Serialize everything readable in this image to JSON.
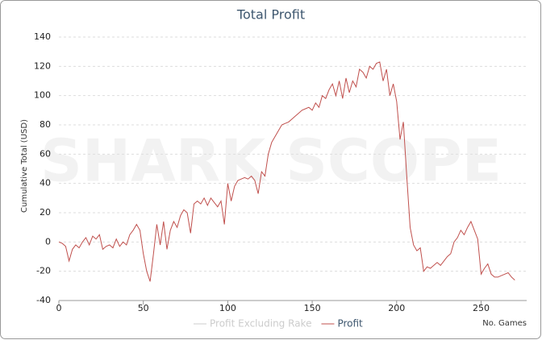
{
  "chart_data": {
    "type": "line",
    "title": "Total Profit",
    "watermark": "SHARK SCOPE",
    "x_label": "No. Games",
    "y_label": "Cumulative Total (USD)",
    "x": [
      0,
      2,
      4,
      6,
      8,
      10,
      12,
      14,
      16,
      18,
      20,
      22,
      24,
      26,
      28,
      30,
      32,
      34,
      36,
      38,
      40,
      42,
      44,
      46,
      48,
      50,
      52,
      54,
      56,
      58,
      60,
      62,
      64,
      66,
      68,
      70,
      72,
      74,
      76,
      78,
      80,
      82,
      84,
      86,
      88,
      90,
      92,
      94,
      96,
      98,
      100,
      102,
      104,
      106,
      108,
      110,
      112,
      114,
      116,
      118,
      120,
      122,
      124,
      126,
      128,
      130,
      132,
      134,
      136,
      138,
      140,
      142,
      144,
      146,
      148,
      150,
      152,
      154,
      156,
      158,
      160,
      162,
      164,
      166,
      168,
      170,
      172,
      174,
      176,
      178,
      180,
      182,
      184,
      186,
      188,
      190,
      192,
      194,
      196,
      198,
      200,
      202,
      204,
      206,
      208,
      210,
      212,
      214,
      216,
      218,
      220,
      222,
      224,
      226,
      228,
      230,
      232,
      234,
      236,
      238,
      240,
      242,
      244,
      246,
      248,
      250,
      252,
      254,
      256,
      258,
      260,
      262,
      264,
      266,
      268,
      270
    ],
    "series": [
      {
        "name": "Profit Excluding Rake",
        "color": "#cccccc",
        "visible": false
      },
      {
        "name": "Profit",
        "color": "#c0504d",
        "visible": true,
        "values": [
          0,
          -1,
          -3,
          -13,
          -5,
          -2,
          -4,
          0,
          3,
          -2,
          4,
          2,
          5,
          -5,
          -3,
          -2,
          -4,
          2,
          -3,
          0,
          -2,
          5,
          8,
          12,
          8,
          -8,
          -20,
          -27,
          -8,
          12,
          -2,
          14,
          -5,
          8,
          14,
          10,
          18,
          22,
          20,
          6,
          26,
          28,
          26,
          30,
          25,
          30,
          27,
          24,
          28,
          12,
          40,
          28,
          38,
          42,
          43,
          44,
          43,
          45,
          42,
          33,
          48,
          45,
          60,
          68,
          72,
          76,
          80,
          81,
          82,
          84,
          86,
          88,
          90,
          91,
          92,
          90,
          95,
          92,
          100,
          98,
          104,
          108,
          100,
          110,
          98,
          112,
          102,
          110,
          106,
          118,
          116,
          112,
          120,
          118,
          122,
          123,
          110,
          118,
          100,
          108,
          96,
          70,
          82,
          45,
          10,
          -2,
          -6,
          -4,
          -20,
          -17,
          -18,
          -16,
          -14,
          -16,
          -13,
          -10,
          -8,
          0,
          3,
          8,
          5,
          10,
          14,
          8,
          2,
          -22,
          -18,
          -15,
          -22,
          -24,
          -24,
          -23,
          -22,
          -21,
          -24,
          -26
        ]
      }
    ],
    "xlim": [
      0,
      277
    ],
    "xticks": [
      0,
      50,
      100,
      150,
      200,
      250
    ],
    "ylim": [
      -40,
      140
    ],
    "yticks": [
      -40,
      -20,
      0,
      20,
      40,
      60,
      80,
      100,
      120,
      140
    ],
    "grid": true,
    "legend": "bottom"
  }
}
